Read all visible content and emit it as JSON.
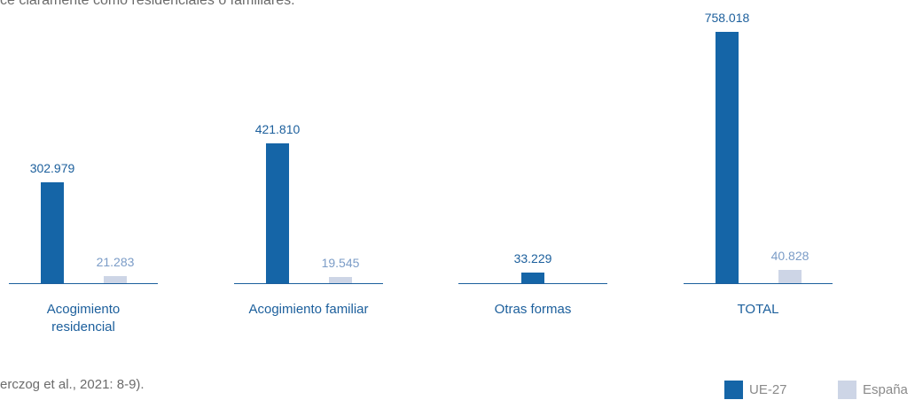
{
  "chart_data": {
    "type": "bar",
    "intro_text": "ce claramente como residenciales o familiares.",
    "source_text": "erczog et al., 2021: 8-9).",
    "categories": [
      "Acogimiento residencial",
      "Acogimiento familiar",
      "Otras formas",
      "TOTAL"
    ],
    "series": [
      {
        "name": "UE-27",
        "color": "#1565a7",
        "label_color": "#1c5f9c",
        "values": [
          302979,
          421810,
          33229,
          758018
        ],
        "value_labels": [
          "302.979",
          "421.810",
          "33.229",
          "758.018"
        ]
      },
      {
        "name": "España",
        "color": "#cdd5e6",
        "label_color": "#7b9cc7",
        "values": [
          21283,
          19545,
          null,
          40828
        ],
        "value_labels": [
          "21.283",
          "19.545",
          null,
          "40.828"
        ]
      }
    ],
    "legend": "bottom-right"
  }
}
